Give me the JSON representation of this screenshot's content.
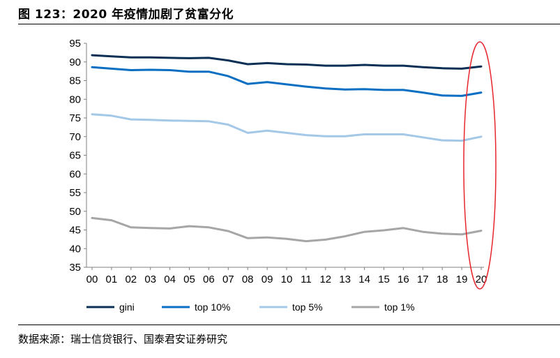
{
  "title": "图 123：2020 年疫情加剧了贫富分化",
  "source": "数据来源：瑞士信贷银行、国泰君安证券研究",
  "chart_data": {
    "type": "line",
    "x": [
      "00",
      "01",
      "02",
      "03",
      "04",
      "05",
      "06",
      "07",
      "08",
      "09",
      "10",
      "11",
      "12",
      "13",
      "14",
      "15",
      "16",
      "17",
      "18",
      "19",
      "20"
    ],
    "ylim": [
      35,
      95
    ],
    "yticks": [
      35,
      40,
      45,
      50,
      55,
      60,
      65,
      70,
      75,
      80,
      85,
      90,
      95
    ],
    "grid": false,
    "legend_position": "bottom",
    "series": [
      {
        "name": "gini",
        "color": "#0b2f55",
        "values": [
          91.8,
          91.5,
          91.2,
          91.2,
          91.1,
          91.0,
          91.1,
          90.4,
          89.4,
          89.7,
          89.4,
          89.3,
          89.0,
          89.0,
          89.2,
          89.0,
          89.0,
          88.6,
          88.3,
          88.2,
          88.8
        ]
      },
      {
        "name": "top 10%",
        "color": "#0a6fc2",
        "values": [
          88.6,
          88.2,
          87.8,
          87.9,
          87.8,
          87.4,
          87.4,
          86.2,
          84.1,
          84.6,
          84.0,
          83.4,
          82.9,
          82.6,
          82.7,
          82.5,
          82.5,
          81.8,
          81.0,
          80.9,
          81.8
        ]
      },
      {
        "name": "top 5%",
        "color": "#a4c8e8",
        "values": [
          76.0,
          75.6,
          74.6,
          74.5,
          74.3,
          74.2,
          74.1,
          73.2,
          71.0,
          71.6,
          71.0,
          70.4,
          70.1,
          70.1,
          70.6,
          70.6,
          70.6,
          69.8,
          69.0,
          68.9,
          70.0
        ]
      },
      {
        "name": "top 1%",
        "color": "#a6a6a6",
        "values": [
          48.2,
          47.6,
          45.7,
          45.5,
          45.4,
          46.0,
          45.7,
          44.7,
          42.8,
          43.0,
          42.6,
          42.0,
          42.4,
          43.3,
          44.5,
          44.9,
          45.5,
          44.5,
          44.0,
          43.8,
          44.8
        ]
      }
    ],
    "annotation": {
      "shape": "ellipse",
      "color": "#e8262d",
      "target_x": "20"
    }
  }
}
